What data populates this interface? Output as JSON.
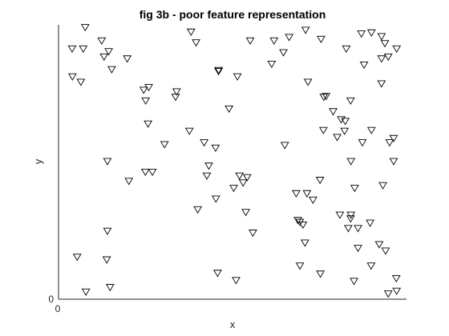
{
  "chart_data": {
    "type": "scatter",
    "title": "fig 3b - poor feature representation",
    "xlabel": "x",
    "ylabel": "y",
    "xlim": [
      0,
      1
    ],
    "ylim": [
      0,
      1
    ],
    "x_ticks": [
      "0"
    ],
    "y_ticks": [
      "0"
    ],
    "grid": false,
    "marker": "triangle-down",
    "series": [
      {
        "points": [
          [
            0.058,
            0.997
          ],
          [
            0.107,
            0.947
          ],
          [
            0.019,
            0.917
          ],
          [
            0.128,
            0.907
          ],
          [
            0.183,
            0.88
          ],
          [
            0.373,
            0.98
          ],
          [
            0.388,
            0.94
          ],
          [
            0.549,
            0.947
          ],
          [
            0.62,
            0.947
          ],
          [
            0.665,
            0.96
          ],
          [
            0.648,
            0.903
          ],
          [
            0.714,
            0.987
          ],
          [
            0.76,
            0.953
          ],
          [
            0.835,
            0.917
          ],
          [
            0.88,
            0.973
          ],
          [
            0.91,
            0.977
          ],
          [
            0.94,
            0.88
          ],
          [
            0.96,
            0.887
          ],
          [
            0.985,
            0.917
          ],
          [
            0.94,
            0.963
          ],
          [
            0.052,
            0.917
          ],
          [
            0.114,
            0.887
          ],
          [
            0.02,
            0.813
          ],
          [
            0.045,
            0.793
          ],
          [
            0.137,
            0.84
          ],
          [
            0.247,
            0.773
          ],
          [
            0.33,
            0.757
          ],
          [
            0.455,
            0.837
          ],
          [
            0.455,
            0.833
          ],
          [
            0.511,
            0.813
          ],
          [
            0.613,
            0.86
          ],
          [
            0.721,
            0.793
          ],
          [
            0.768,
            0.737
          ],
          [
            0.775,
            0.74
          ],
          [
            0.796,
            0.683
          ],
          [
            0.848,
            0.723
          ],
          [
            0.82,
            0.653
          ],
          [
            0.888,
            0.857
          ],
          [
            0.94,
            0.787
          ],
          [
            0.95,
            0.937
          ],
          [
            0.238,
            0.723
          ],
          [
            0.232,
            0.763
          ],
          [
            0.327,
            0.737
          ],
          [
            0.486,
            0.693
          ],
          [
            0.245,
            0.637
          ],
          [
            0.294,
            0.56
          ],
          [
            0.368,
            0.61
          ],
          [
            0.412,
            0.567
          ],
          [
            0.446,
            0.547
          ],
          [
            0.652,
            0.557
          ],
          [
            0.767,
            0.613
          ],
          [
            0.808,
            0.587
          ],
          [
            0.83,
            0.61
          ],
          [
            0.832,
            0.647
          ],
          [
            0.91,
            0.613
          ],
          [
            0.883,
            0.567
          ],
          [
            0.964,
            0.567
          ],
          [
            0.976,
            0.583
          ],
          [
            0.976,
            0.497
          ],
          [
            0.849,
            0.497
          ],
          [
            0.124,
            0.497
          ],
          [
            0.188,
            0.423
          ],
          [
            0.237,
            0.457
          ],
          [
            0.258,
            0.457
          ],
          [
            0.426,
            0.48
          ],
          [
            0.42,
            0.443
          ],
          [
            0.447,
            0.357
          ],
          [
            0.517,
            0.443
          ],
          [
            0.528,
            0.417
          ],
          [
            0.54,
            0.437
          ],
          [
            0.5,
            0.397
          ],
          [
            0.686,
            0.377
          ],
          [
            0.718,
            0.377
          ],
          [
            0.736,
            0.353
          ],
          [
            0.757,
            0.427
          ],
          [
            0.816,
            0.297
          ],
          [
            0.849,
            0.297
          ],
          [
            0.86,
            0.397
          ],
          [
            0.944,
            0.407
          ],
          [
            0.87,
            0.247
          ],
          [
            0.393,
            0.317
          ],
          [
            0.536,
            0.307
          ],
          [
            0.557,
            0.23
          ],
          [
            0.706,
            0.26
          ],
          [
            0.697,
            0.27
          ],
          [
            0.691,
            0.277
          ],
          [
            0.712,
            0.193
          ],
          [
            0.841,
            0.247
          ],
          [
            0.848,
            0.283
          ],
          [
            0.906,
            0.267
          ],
          [
            0.933,
            0.187
          ],
          [
            0.952,
            0.163
          ],
          [
            0.909,
            0.107
          ],
          [
            0.87,
            0.173
          ],
          [
            0.697,
            0.107
          ],
          [
            0.758,
            0.077
          ],
          [
            0.858,
            0.05
          ],
          [
            0.452,
            0.08
          ],
          [
            0.507,
            0.053
          ],
          [
            0.984,
            0.06
          ],
          [
            0.124,
            0.237
          ],
          [
            0.122,
            0.13
          ],
          [
            0.034,
            0.14
          ],
          [
            0.132,
            0.027
          ],
          [
            0.06,
            0.01
          ],
          [
            0.96,
            0.003
          ],
          [
            0.985,
            0.013
          ]
        ]
      }
    ]
  }
}
